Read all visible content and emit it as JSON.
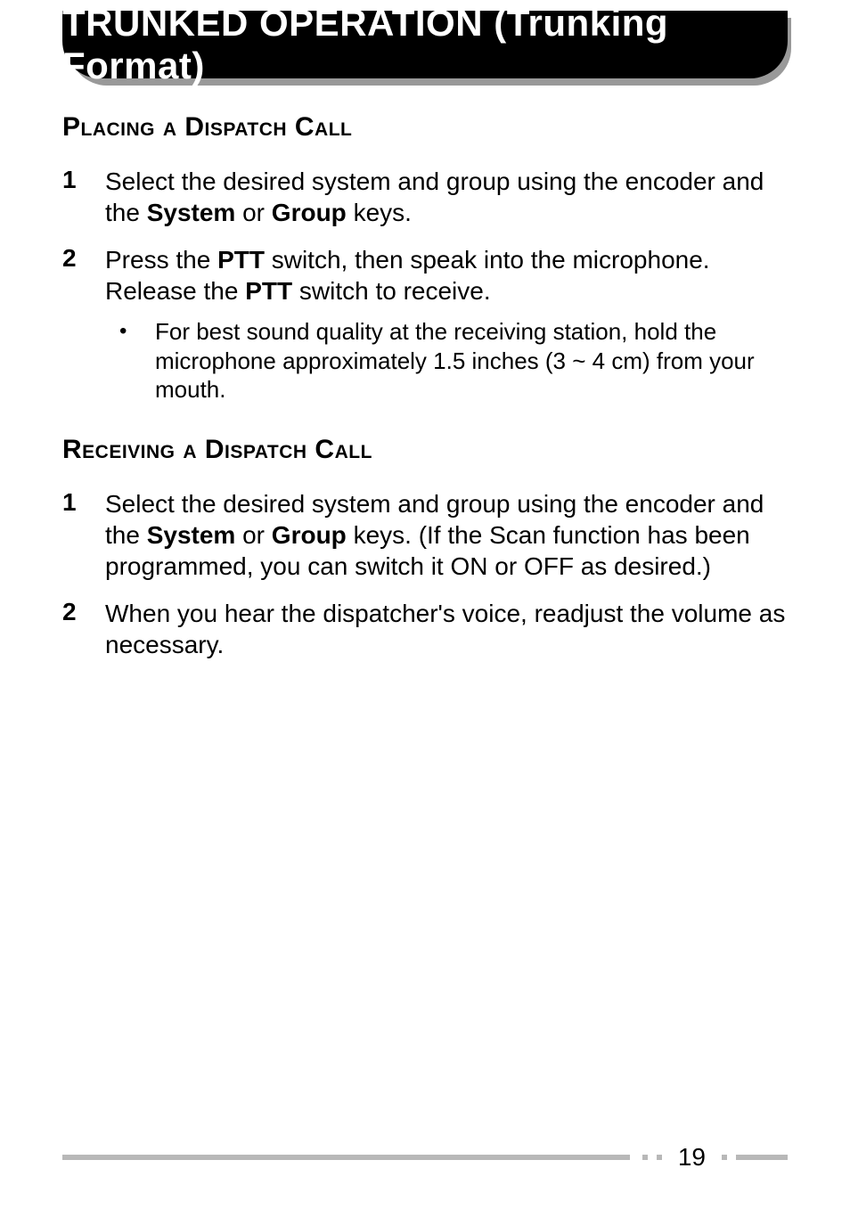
{
  "banner": {
    "title": "TRUNKED OPERATION (Trunking Format)"
  },
  "sections": [
    {
      "heading": "Placing a Dispatch Call",
      "items": [
        {
          "num": "1",
          "runs": [
            {
              "t": "Select the desired system and group using the encoder and the ",
              "b": false
            },
            {
              "t": "System",
              "b": true
            },
            {
              "t": " or ",
              "b": false
            },
            {
              "t": "Group",
              "b": true
            },
            {
              "t": " keys.",
              "b": false
            }
          ]
        },
        {
          "num": "2",
          "runs": [
            {
              "t": "Press the ",
              "b": false
            },
            {
              "t": "PTT",
              "b": true
            },
            {
              "t": " switch, then speak into the microphone.  Release the ",
              "b": false
            },
            {
              "t": "PTT",
              "b": true
            },
            {
              "t": " switch to receive.",
              "b": false
            }
          ],
          "sub": [
            {
              "t": "For best sound quality at the receiving station, hold the microphone approximately 1.5 inches (3 ~ 4 cm) from your mouth."
            }
          ]
        }
      ]
    },
    {
      "heading": "Receiving a Dispatch Call",
      "items": [
        {
          "num": "1",
          "runs": [
            {
              "t": "Select the desired system and group using the encoder and the ",
              "b": false
            },
            {
              "t": "System",
              "b": true
            },
            {
              "t": " or ",
              "b": false
            },
            {
              "t": "Group",
              "b": true
            },
            {
              "t": " keys.  (If the Scan function has been programmed, you can switch it ON or OFF as desired.)",
              "b": false
            }
          ]
        },
        {
          "num": "2",
          "runs": [
            {
              "t": "When you hear the dispatcher's voice, readjust the volume as necessary.",
              "b": false
            }
          ]
        }
      ]
    }
  ],
  "footer": {
    "page": "19"
  },
  "colors": {
    "banner_bg": "#000000",
    "banner_fg": "#ffffff",
    "shadow": "#999999",
    "footer_gray": "#b8b8b8",
    "text": "#000000",
    "page_bg": "#ffffff"
  }
}
